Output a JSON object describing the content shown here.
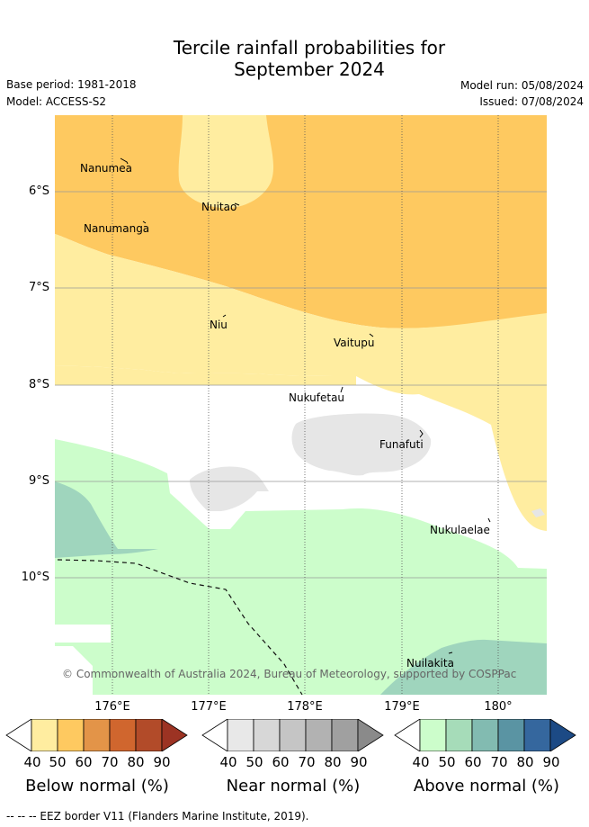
{
  "title_line1": "Tercile rainfall probabilities for",
  "title_line2": "September 2024",
  "base_period": "Base period: 1981-2018",
  "model": "Model: ACCESS-S2",
  "model_run": "Model run: 05/08/2024",
  "issued": "Issued: 07/08/2024",
  "y_ticks": [
    "6°S",
    "7°S",
    "8°S",
    "9°S",
    "10°S"
  ],
  "x_ticks": [
    "176°E",
    "177°E",
    "178°E",
    "179°E",
    "180°"
  ],
  "places": [
    "Nanumea",
    "Nuitao",
    "Nanumanga",
    "Niu",
    "Vaitupu",
    "Nukufetau",
    "Funafuti",
    "Nukulaelae",
    "Nuilakita"
  ],
  "copyright": "© Commonwealth of Australia 2024, Bureau of Meteorology, supported by COSPPac",
  "colorbars": {
    "below": {
      "label": "Below normal (%)",
      "ticks": [
        "40",
        "50",
        "60",
        "70",
        "80",
        "90"
      ],
      "colors": [
        "#ffffff",
        "#ffeda0",
        "#fec960",
        "#e39448",
        "#d0662e",
        "#b24b29",
        "#9c3323"
      ]
    },
    "near": {
      "label": "Near normal (%)",
      "ticks": [
        "40",
        "50",
        "60",
        "70",
        "80",
        "90"
      ],
      "colors": [
        "#ffffff",
        "#e8e8e8",
        "#d7d7d7",
        "#c5c5c5",
        "#b2b2b2",
        "#a0a0a0",
        "#8a8a8a"
      ]
    },
    "above": {
      "label": "Above normal (%)",
      "ticks": [
        "40",
        "50",
        "60",
        "70",
        "80",
        "90"
      ],
      "colors": [
        "#ffffff",
        "#ccfdcb",
        "#a6dcb9",
        "#82bbb1",
        "#5a94a3",
        "#35679e",
        "#1c4a85"
      ]
    }
  },
  "footnote": "-- -- -- EEZ border V11 (Flanders Marine Institute, 2019)."
}
